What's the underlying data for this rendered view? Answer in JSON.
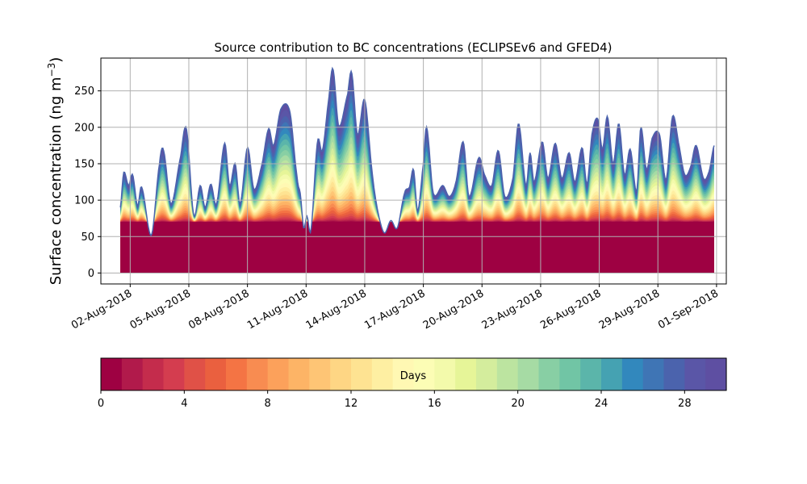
{
  "chart_data": {
    "type": "area",
    "title": "Source contribution to BC concentrations (ECLIPSEv6 and GFED4)",
    "ylabel_text": "Surface concentration (ng m",
    "ylabel_sup": "−3",
    "ylabel_close": ")",
    "xlabel": "",
    "x_range": [
      "2018-07-31T12:00",
      "2018-09-01T12:00"
    ],
    "data_range": [
      "2018-08-01T12:00",
      "2018-08-31T21:00"
    ],
    "ylim": [
      -15,
      295
    ],
    "yticks": [
      0,
      50,
      100,
      150,
      200,
      250
    ],
    "xticks": [
      {
        "date": "2018-08-02",
        "label": "02-Aug-2018"
      },
      {
        "date": "2018-08-05",
        "label": "05-Aug-2018"
      },
      {
        "date": "2018-08-08",
        "label": "08-Aug-2018"
      },
      {
        "date": "2018-08-11",
        "label": "11-Aug-2018"
      },
      {
        "date": "2018-08-14",
        "label": "14-Aug-2018"
      },
      {
        "date": "2018-08-17",
        "label": "17-Aug-2018"
      },
      {
        "date": "2018-08-20",
        "label": "20-Aug-2018"
      },
      {
        "date": "2018-08-23",
        "label": "23-Aug-2018"
      },
      {
        "date": "2018-08-26",
        "label": "26-Aug-2018"
      },
      {
        "date": "2018-08-29",
        "label": "29-Aug-2018"
      },
      {
        "date": "2018-09-01",
        "label": "01-Sep-2018"
      }
    ],
    "grid": true,
    "total_series": {
      "name": "",
      "points": [
        [
          "2018-08-01T12:00",
          90
        ],
        [
          "2018-08-01T16:00",
          138
        ],
        [
          "2018-08-01T22:00",
          120
        ],
        [
          "2018-08-02T03:00",
          135
        ],
        [
          "2018-08-02T09:00",
          92
        ],
        [
          "2018-08-02T14:00",
          118
        ],
        [
          "2018-08-03T02:00",
          52
        ],
        [
          "2018-08-03T12:00",
          150
        ],
        [
          "2018-08-03T17:00",
          168
        ],
        [
          "2018-08-04T02:00",
          95
        ],
        [
          "2018-08-04T14:00",
          160
        ],
        [
          "2018-08-04T21:00",
          198
        ],
        [
          "2018-08-05T06:00",
          80
        ],
        [
          "2018-08-05T14:00",
          120
        ],
        [
          "2018-08-05T20:00",
          90
        ],
        [
          "2018-08-06T03:00",
          122
        ],
        [
          "2018-08-06T10:00",
          95
        ],
        [
          "2018-08-06T20:00",
          178
        ],
        [
          "2018-08-07T02:00",
          120
        ],
        [
          "2018-08-07T09:00",
          150
        ],
        [
          "2018-08-07T15:00",
          95
        ],
        [
          "2018-08-08T00:00",
          172
        ],
        [
          "2018-08-08T08:00",
          115
        ],
        [
          "2018-08-08T18:00",
          150
        ],
        [
          "2018-08-09T02:00",
          198
        ],
        [
          "2018-08-09T08:00",
          175
        ],
        [
          "2018-08-09T17:00",
          225
        ],
        [
          "2018-08-10T04:00",
          222
        ],
        [
          "2018-08-10T13:00",
          132
        ],
        [
          "2018-08-10T17:00",
          108
        ],
        [
          "2018-08-10T21:00",
          62
        ],
        [
          "2018-08-11T01:00",
          78
        ],
        [
          "2018-08-11T06:00",
          60
        ],
        [
          "2018-08-11T14:00",
          180
        ],
        [
          "2018-08-11T20:00",
          168
        ],
        [
          "2018-08-12T04:00",
          240
        ],
        [
          "2018-08-12T09:00",
          280
        ],
        [
          "2018-08-12T16:00",
          202
        ],
        [
          "2018-08-13T03:00",
          245
        ],
        [
          "2018-08-13T08:00",
          275
        ],
        [
          "2018-08-13T15:00",
          190
        ],
        [
          "2018-08-14T00:00",
          238
        ],
        [
          "2018-08-14T09:00",
          140
        ],
        [
          "2018-08-14T16:00",
          85
        ],
        [
          "2018-08-15T00:00",
          55
        ],
        [
          "2018-08-15T08:00",
          72
        ],
        [
          "2018-08-15T16:00",
          62
        ],
        [
          "2018-08-16T01:00",
          110
        ],
        [
          "2018-08-16T07:00",
          118
        ],
        [
          "2018-08-16T12:00",
          142
        ],
        [
          "2018-08-16T17:00",
          85
        ],
        [
          "2018-08-17T00:00",
          150
        ],
        [
          "2018-08-17T04:00",
          200
        ],
        [
          "2018-08-17T12:00",
          110
        ],
        [
          "2018-08-18T00:00",
          120
        ],
        [
          "2018-08-18T08:00",
          105
        ],
        [
          "2018-08-18T16:00",
          125
        ],
        [
          "2018-08-19T01:00",
          180
        ],
        [
          "2018-08-19T08:00",
          105
        ],
        [
          "2018-08-19T20:00",
          158
        ],
        [
          "2018-08-20T03:00",
          135
        ],
        [
          "2018-08-20T12:00",
          120
        ],
        [
          "2018-08-20T20:00",
          168
        ],
        [
          "2018-08-21T04:00",
          105
        ],
        [
          "2018-08-21T14:00",
          130
        ],
        [
          "2018-08-21T21:00",
          205
        ],
        [
          "2018-08-22T06:00",
          120
        ],
        [
          "2018-08-22T11:00",
          165
        ],
        [
          "2018-08-22T16:00",
          125
        ],
        [
          "2018-08-23T02:00",
          180
        ],
        [
          "2018-08-23T09:00",
          130
        ],
        [
          "2018-08-23T18:00",
          178
        ],
        [
          "2018-08-24T02:00",
          130
        ],
        [
          "2018-08-24T11:00",
          165
        ],
        [
          "2018-08-24T18:00",
          125
        ],
        [
          "2018-08-25T03:00",
          172
        ],
        [
          "2018-08-25T09:00",
          122
        ],
        [
          "2018-08-25T15:00",
          190
        ],
        [
          "2018-08-25T22:00",
          212
        ],
        [
          "2018-08-26T04:00",
          170
        ],
        [
          "2018-08-26T10:00",
          215
        ],
        [
          "2018-08-26T17:00",
          150
        ],
        [
          "2018-08-27T00:00",
          205
        ],
        [
          "2018-08-27T07:00",
          135
        ],
        [
          "2018-08-27T14:00",
          170
        ],
        [
          "2018-08-27T22:00",
          112
        ],
        [
          "2018-08-28T03:00",
          200
        ],
        [
          "2018-08-28T10:00",
          142
        ],
        [
          "2018-08-28T17:00",
          185
        ],
        [
          "2018-08-29T02:00",
          190
        ],
        [
          "2018-08-29T10:00",
          128
        ],
        [
          "2018-08-29T18:00",
          215
        ],
        [
          "2018-08-30T02:00",
          175
        ],
        [
          "2018-08-30T09:00",
          135
        ],
        [
          "2018-08-30T16:00",
          145
        ],
        [
          "2018-08-30T23:00",
          175
        ],
        [
          "2018-08-31T08:00",
          130
        ],
        [
          "2018-08-31T15:00",
          140
        ],
        [
          "2018-08-31T21:00",
          175
        ]
      ]
    },
    "colorbar": {
      "label": "Days",
      "min": 0,
      "max": 30,
      "levels": 30,
      "ticks": [
        0,
        4,
        8,
        12,
        16,
        20,
        24,
        28
      ],
      "colors": [
        "#9e0142",
        "#b11a4b",
        "#c42c4c",
        "#d43d4f",
        "#e05147",
        "#ea603f",
        "#f47444",
        "#f88c51",
        "#fca15b",
        "#fdb466",
        "#fec575",
        "#fed684",
        "#fee392",
        "#feefa2",
        "#fff8b3",
        "#fcfdb5",
        "#f3faab",
        "#e6f598",
        "#d4ed9d",
        "#bce4a0",
        "#a6dba4",
        "#88cfa4",
        "#71c5a5",
        "#5bb5aa",
        "#45a2b2",
        "#3288bd",
        "#3f75b5",
        "#4b63ad",
        "#5a56a7",
        "#5e4fa2"
      ]
    }
  }
}
